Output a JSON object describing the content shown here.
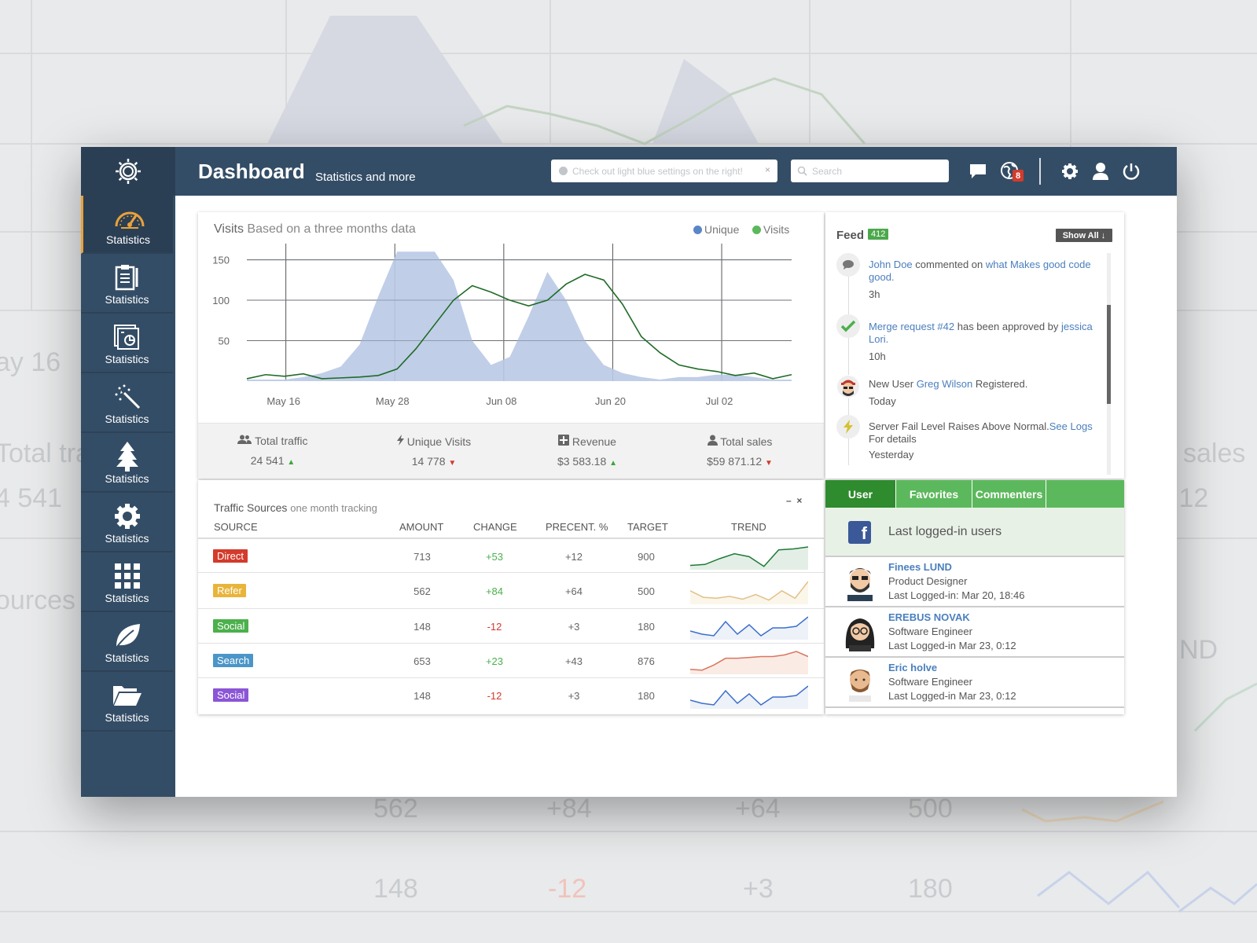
{
  "app": {
    "title": "Dashboard",
    "subtitle": "Statistics and more",
    "hint_text": "Check out light blue settings on the right!",
    "search_placeholder": "Search",
    "notification_count": "8"
  },
  "sidebar": {
    "items": [
      {
        "label": "Statistics",
        "icon": "speedometer-icon",
        "active": true
      },
      {
        "label": "Statistics",
        "icon": "clipboard-icon"
      },
      {
        "label": "Statistics",
        "icon": "reports-icon"
      },
      {
        "label": "Statistics",
        "icon": "magic-wand-icon"
      },
      {
        "label": "Statistics",
        "icon": "tree-icon"
      },
      {
        "label": "Statistics",
        "icon": "gear-icon"
      },
      {
        "label": "Statistics",
        "icon": "grid-icon"
      },
      {
        "label": "Statistics",
        "icon": "leaf-icon"
      },
      {
        "label": "Statistics",
        "icon": "folder-icon"
      }
    ]
  },
  "visits": {
    "title": "Visits",
    "subtitle": "Based on a three months data",
    "legend_unique": "Unique",
    "legend_visits": "Visits"
  },
  "chart_data": {
    "type": "area",
    "ylim": [
      0,
      170
    ],
    "yticks": [
      50,
      100,
      150
    ],
    "xticks": [
      "May 16",
      "May 28",
      "Jun 08",
      "Jun 20",
      "Jul 02"
    ],
    "series": [
      {
        "name": "Unique",
        "color": "#b9c9e6",
        "values": [
          2,
          2,
          2,
          5,
          10,
          18,
          45,
          105,
          160,
          160,
          160,
          125,
          50,
          20,
          30,
          80,
          135,
          100,
          50,
          20,
          10,
          5,
          2,
          5,
          5,
          8,
          8,
          5,
          2,
          2
        ]
      },
      {
        "name": "Visits",
        "color": "#1f6b26",
        "values": [
          3,
          8,
          6,
          9,
          3,
          4,
          5,
          7,
          15,
          40,
          70,
          100,
          118,
          110,
          100,
          93,
          100,
          120,
          132,
          125,
          95,
          55,
          35,
          20,
          15,
          12,
          7,
          10,
          3,
          8
        ]
      }
    ]
  },
  "stats": {
    "total_traffic_label": "Total traffic",
    "total_traffic_value": "24 541",
    "unique_visits_label": "Unique Visits",
    "unique_visits_value": "14 778",
    "revenue_label": "Revenue",
    "revenue_value": "$3 583.18",
    "total_sales_label": "Total sales",
    "total_sales_value": "$59 871.12"
  },
  "feed": {
    "title": "Feed",
    "count": "412",
    "show_all": "Show All",
    "items": [
      {
        "a": "John Doe",
        "b": " commented on ",
        "c": "what Makes good code good.",
        "time": "3h"
      },
      {
        "a": "Merge request #42",
        "b": " has been approved by ",
        "c": "jessica Lori.",
        "time": "10h"
      },
      {
        "a": "New User ",
        "b": "Greg Wilson",
        "c": " Registered.",
        "time": "Today"
      },
      {
        "a": "Server Fail Level Raises Above Normal.",
        "b": "See Logs",
        "c": " For details",
        "time": "Yesterday"
      }
    ]
  },
  "traffic": {
    "title": "Traffic Sources",
    "subtitle": "one month tracking",
    "min_label": "–",
    "close_label": "×",
    "headers": [
      "SOURCE",
      "AMOUNT",
      "CHANGE",
      "PRECENT. %",
      "TARGET",
      "TREND"
    ],
    "rows": [
      {
        "source": "Direct",
        "color": "#d33b2c",
        "amount": "713",
        "change": "+53",
        "percent": "+12",
        "target": "900",
        "trend": [
          2,
          3,
          9,
          14,
          11,
          1,
          18,
          19,
          21
        ],
        "trend_color": "#1f7a36",
        "trend_fill": "#e3efe6"
      },
      {
        "source": "Refer",
        "color": "#e9b43a",
        "amount": "562",
        "change": "+84",
        "percent": "+64",
        "target": "500",
        "trend": [
          12,
          5,
          4,
          6,
          3,
          8,
          2,
          12,
          4,
          22
        ],
        "trend_color": "#e2c08a",
        "trend_fill": "#fbf6ea"
      },
      {
        "source": "Social",
        "color": "#4cb04c",
        "amount": "148",
        "change": "-12",
        "percent": "+3",
        "target": "180",
        "trend": [
          8,
          4,
          2,
          20,
          4,
          16,
          2,
          12,
          12,
          14,
          26
        ],
        "trend_color": "#3b6fce",
        "trend_fill": "#edf1f8"
      },
      {
        "source": "Search",
        "color": "#4b95c8",
        "amount": "653",
        "change": "+23",
        "percent": "+43",
        "target": "876",
        "trend": [
          3,
          2,
          8,
          16,
          16,
          17,
          18,
          18,
          20,
          24,
          18
        ],
        "trend_color": "#d9765e",
        "trend_fill": "#fbebe5"
      },
      {
        "source": "Social",
        "color": "#8b55d6",
        "amount": "148",
        "change": "-12",
        "percent": "+3",
        "target": "180",
        "trend": [
          8,
          4,
          2,
          20,
          4,
          16,
          2,
          12,
          12,
          14,
          26
        ],
        "trend_color": "#3b6fce",
        "trend_fill": "#edf1f8"
      }
    ]
  },
  "users": {
    "tabs": [
      "User",
      "Favorites",
      "Commenters"
    ],
    "header": "Last logged-in users",
    "list": [
      {
        "name": "Finees LUND",
        "role": "Product Designer",
        "last": "Last Logged-in: Mar 20, 18:46"
      },
      {
        "name": "EREBUS NOVAK",
        "role": "Software Engineer",
        "last": "Last Logged-in Mar 23, 0:12"
      },
      {
        "name": "Eric holve",
        "role": "Software Engineer",
        "last": "Last Logged-in Mar 23, 0:12"
      }
    ]
  },
  "colors": {
    "topbar": "#344d66",
    "accent_active": "#e9a23b",
    "green_tab": "#5cb85c"
  }
}
